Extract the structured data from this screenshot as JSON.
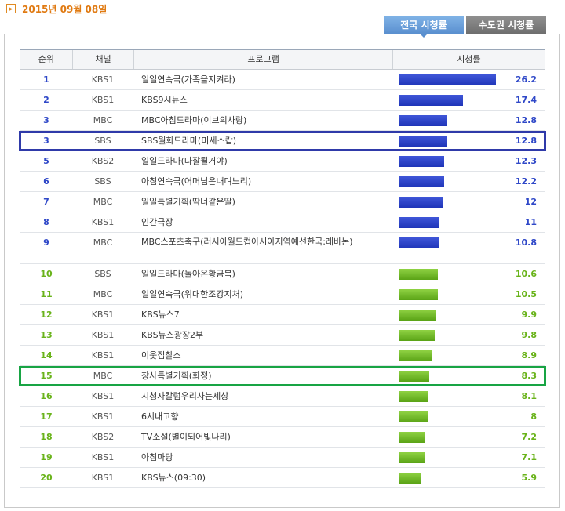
{
  "date": "2015년 09월 08일",
  "tabs": [
    {
      "label": "전국 시청률"
    },
    {
      "label": "수도권 시청률"
    }
  ],
  "header": {
    "rank": "순위",
    "channel": "채널",
    "program": "프로그램",
    "rating": "시청률"
  },
  "max_rating": 26.2,
  "rows": [
    {
      "rank": "1",
      "channel": "KBS1",
      "program": "일일연속극(가족을지켜라)",
      "rating": "26.2",
      "color": "blue"
    },
    {
      "rank": "2",
      "channel": "KBS1",
      "program": "KBS9시뉴스",
      "rating": "17.4",
      "color": "blue"
    },
    {
      "rank": "3",
      "channel": "MBC",
      "program": "MBC아침드라마(이브의사랑)",
      "rating": "12.8",
      "color": "blue"
    },
    {
      "rank": "3",
      "channel": "SBS",
      "program": "SBS월화드라마(미세스캅)",
      "rating": "12.8",
      "color": "blue",
      "highlight": true
    },
    {
      "rank": "5",
      "channel": "KBS2",
      "program": "일일드라마(다잘될거야)",
      "rating": "12.3",
      "color": "blue"
    },
    {
      "rank": "6",
      "channel": "SBS",
      "program": "아침연속극(어머님은내며느리)",
      "rating": "12.2",
      "color": "blue"
    },
    {
      "rank": "7",
      "channel": "MBC",
      "program": "일일특별기획(딱너같은딸)",
      "rating": "12",
      "color": "blue"
    },
    {
      "rank": "8",
      "channel": "KBS1",
      "program": "인간극장",
      "rating": "11",
      "color": "blue"
    },
    {
      "rank": "9",
      "channel": "MBC",
      "program": "MBC스포츠축구(러시아월드컵아시아지역예선한국:레바논)",
      "rating": "10.8",
      "color": "blue",
      "tall": true
    },
    {
      "rank": "10",
      "channel": "SBS",
      "program": "일일드라마(돌아온황금복)",
      "rating": "10.6",
      "color": "green"
    },
    {
      "rank": "11",
      "channel": "MBC",
      "program": "일일연속극(위대한조강지처)",
      "rating": "10.5",
      "color": "green"
    },
    {
      "rank": "12",
      "channel": "KBS1",
      "program": "KBS뉴스7",
      "rating": "9.9",
      "color": "green"
    },
    {
      "rank": "13",
      "channel": "KBS1",
      "program": "KBS뉴스광장2부",
      "rating": "9.8",
      "color": "green"
    },
    {
      "rank": "14",
      "channel": "KBS1",
      "program": "이웃집찰스",
      "rating": "8.9",
      "color": "green"
    },
    {
      "rank": "15",
      "channel": "MBC",
      "program": "창사특별기획(화정)",
      "rating": "8.3",
      "color": "green",
      "highlight": true
    },
    {
      "rank": "16",
      "channel": "KBS1",
      "program": "시청자칼럼우리사는세상",
      "rating": "8.1",
      "color": "green"
    },
    {
      "rank": "17",
      "channel": "KBS1",
      "program": "6시내고향",
      "rating": "8",
      "color": "green"
    },
    {
      "rank": "18",
      "channel": "KBS2",
      "program": "TV소설(별이되어빛나리)",
      "rating": "7.2",
      "color": "green"
    },
    {
      "rank": "19",
      "channel": "KBS1",
      "program": "아침마당",
      "rating": "7.1",
      "color": "green"
    },
    {
      "rank": "20",
      "channel": "KBS1",
      "program": "KBS뉴스(09:30)",
      "rating": "5.9",
      "color": "green"
    }
  ],
  "colors": {
    "blue": "#2f48c8",
    "green": "#69b31a",
    "date": "#e07a12"
  }
}
